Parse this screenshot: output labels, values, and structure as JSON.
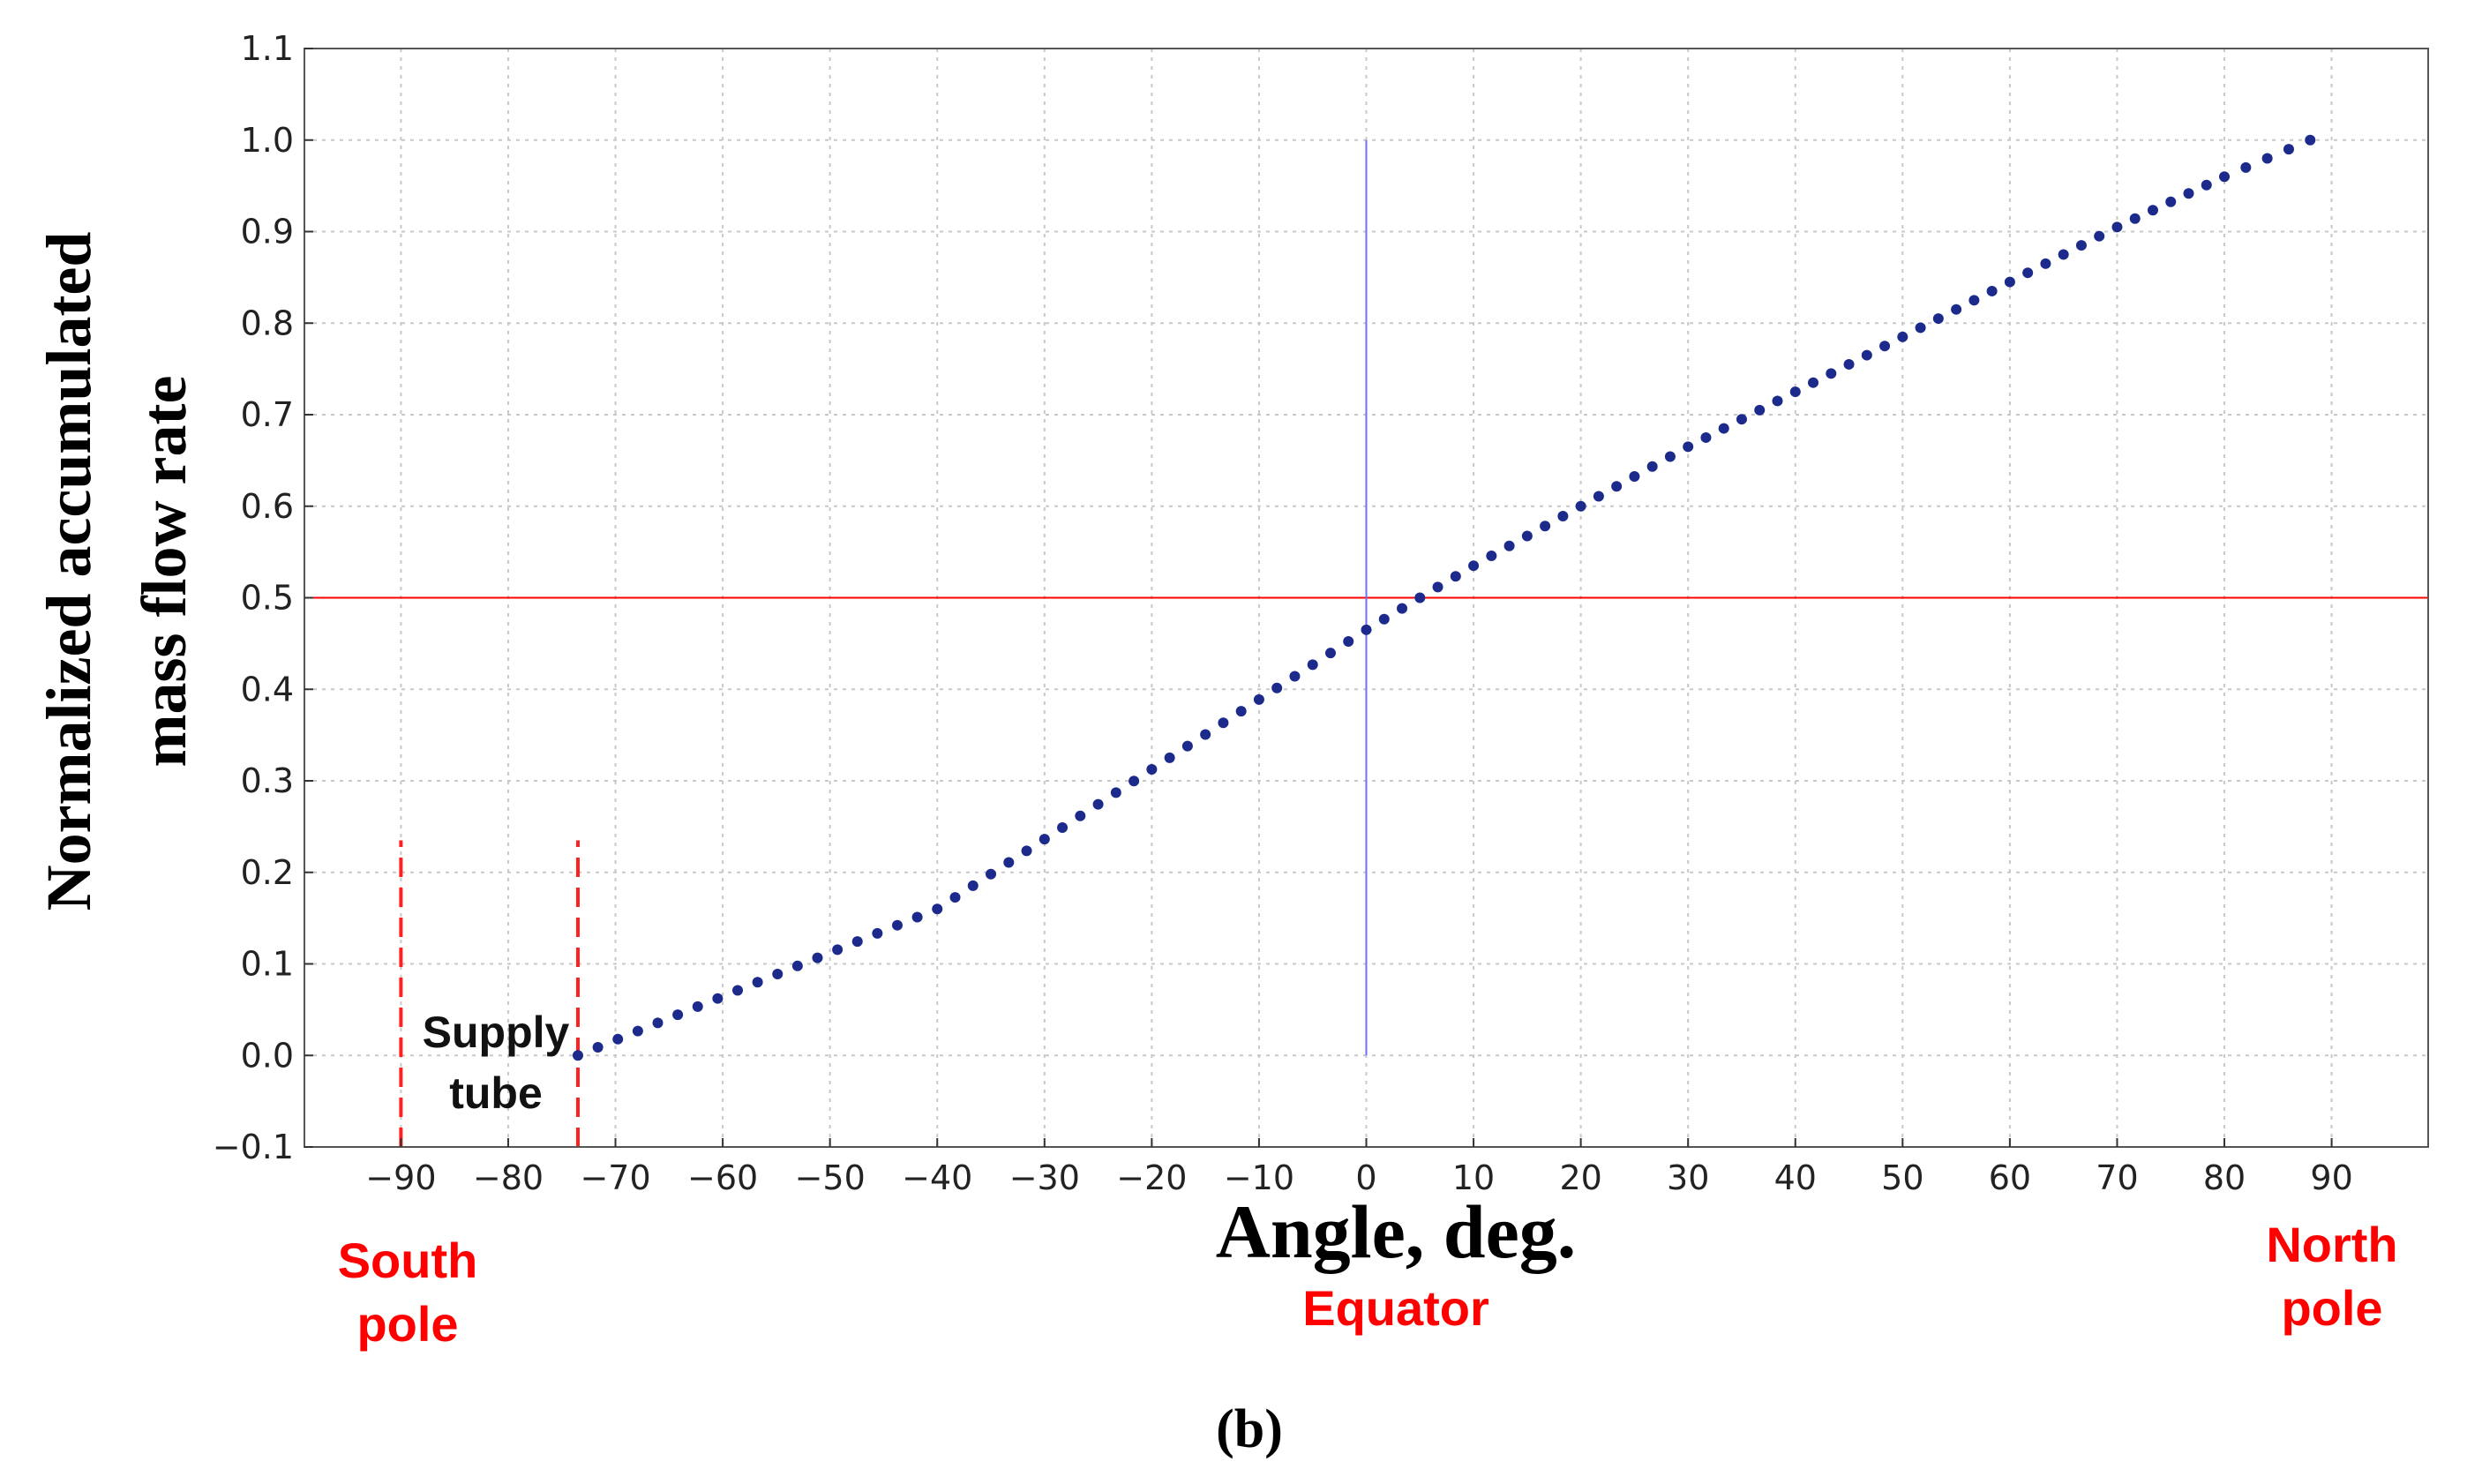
{
  "chart_data": {
    "type": "scatter",
    "xlabel": "Angle, deg.",
    "ylabel_lines": [
      "Normalized accumulated",
      "mass flow rate"
    ],
    "xlim": [
      -99,
      99
    ],
    "ylim": [
      -0.1,
      1.1
    ],
    "x_ticks": [
      -90,
      -80,
      -70,
      -60,
      -50,
      -40,
      -30,
      -20,
      -10,
      0,
      10,
      20,
      30,
      40,
      50,
      60,
      70,
      80,
      90
    ],
    "y_ticks": [
      -0.1,
      0.0,
      0.1,
      0.2,
      0.3,
      0.4,
      0.5,
      0.6,
      0.7,
      0.8,
      0.9,
      1.0,
      1.1
    ],
    "grid": true,
    "series": [
      {
        "color": "#1c2a8c",
        "marker": "dot",
        "x": [
          -73.5,
          -40,
          0,
          10,
          20,
          30,
          40,
          50,
          60,
          70,
          80,
          88
        ],
        "y": [
          0.0,
          0.16,
          0.465,
          0.535,
          0.6,
          0.665,
          0.725,
          0.785,
          0.845,
          0.905,
          0.96,
          1.0
        ]
      }
    ],
    "reference_lines": [
      {
        "orientation": "horizontal",
        "y": 0.5,
        "color": "#ff0000",
        "style": "solid"
      },
      {
        "orientation": "vertical",
        "x": 0,
        "y_range": [
          0.0,
          1.0
        ],
        "color": "#6f6fff",
        "style": "solid"
      },
      {
        "orientation": "vertical",
        "x": -90,
        "y_range": [
          -0.1,
          0.235
        ],
        "color": "#ff2020",
        "style": "dashed"
      },
      {
        "orientation": "vertical",
        "x": -73.5,
        "y_range": [
          -0.1,
          0.235
        ],
        "color": "#ff2020",
        "style": "dashed"
      }
    ],
    "annotations": [
      {
        "lines": [
          "Supply",
          "tube"
        ],
        "color": "#111111"
      },
      {
        "lines": [
          "South",
          "pole"
        ],
        "color": "#ff0000"
      },
      {
        "lines": [
          "Equator"
        ],
        "color": "#ff0000"
      },
      {
        "lines": [
          "North",
          "pole"
        ],
        "color": "#ff0000"
      }
    ],
    "panel_label": "(b)"
  }
}
